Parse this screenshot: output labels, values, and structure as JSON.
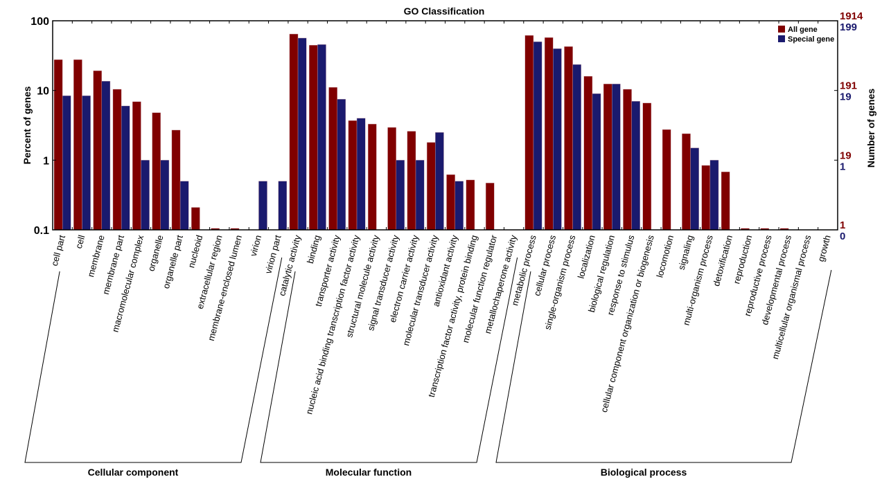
{
  "chart_data": {
    "type": "bar",
    "title": "GO Classification",
    "ylabel": "Percent of genes",
    "ylabel_right": "Number of genes",
    "yscale": "log",
    "ylim": [
      0.1,
      100
    ],
    "yticks": [
      "0.1",
      "1",
      "10",
      "100"
    ],
    "right_ticks_all": [
      "1",
      "19",
      "191",
      "1914"
    ],
    "right_ticks_special": [
      "0",
      "1",
      "19",
      "199"
    ],
    "legend_position": "top-right",
    "colors": {
      "All gene": "#800000",
      "Special gene": "#1a1a6e"
    },
    "categories": [
      "cell part",
      "cell",
      "membrane",
      "membrane part",
      "macromolecular complex",
      "organelle",
      "organelle part",
      "nucleoid",
      "extracellular region",
      "membrane-enclosed lumen",
      "virion",
      "virion part",
      "catalytic activity",
      "binding",
      "transporter activity",
      "nucleic acid binding transcription factor activity",
      "structural molecule activity",
      "signal transducer activity",
      "electron carrier activity",
      "molecular transducer activity",
      "antioxidant activity",
      "transcription factor activity, protein binding",
      "molecular function regulator",
      "metallochaperone activity",
      "metabolic process",
      "cellular process",
      "single-organism process",
      "localization",
      "biological regulation",
      "response to stimulus",
      "cellular component organization or biogenesis",
      "locomotion",
      "signaling",
      "multi-organism process",
      "detoxification",
      "reproduction",
      "reproductive process",
      "developmental process",
      "multicellular organismal process",
      "growth"
    ],
    "groups": [
      {
        "name": "Cellular component",
        "count": 12
      },
      {
        "name": "Molecular function",
        "count": 12
      },
      {
        "name": "Biological process",
        "count": 16
      }
    ],
    "series": [
      {
        "name": "All gene",
        "values": [
          27.7,
          27.7,
          19.2,
          10.4,
          6.9,
          4.8,
          2.7,
          0.21,
          0.105,
          0.105,
          null,
          null,
          64.6,
          44.6,
          11.1,
          3.7,
          3.3,
          2.95,
          2.6,
          1.8,
          0.62,
          0.52,
          0.47,
          null,
          61.7,
          57.5,
          42.7,
          16.0,
          12.4,
          10.4,
          6.6,
          2.75,
          2.4,
          0.84,
          0.68,
          0.105,
          0.105,
          0.105,
          null,
          null
        ]
      },
      {
        "name": "Special gene",
        "values": [
          8.4,
          8.4,
          13.6,
          6.0,
          1.0,
          1.0,
          0.5,
          null,
          null,
          null,
          0.5,
          0.5,
          56.5,
          45.6,
          7.5,
          4.0,
          null,
          1.0,
          1.0,
          2.5,
          0.5,
          null,
          null,
          null,
          50.0,
          39.8,
          23.6,
          9.0,
          12.4,
          7.0,
          null,
          null,
          1.5,
          1.0,
          null,
          null,
          null,
          null,
          null,
          null
        ]
      }
    ]
  }
}
